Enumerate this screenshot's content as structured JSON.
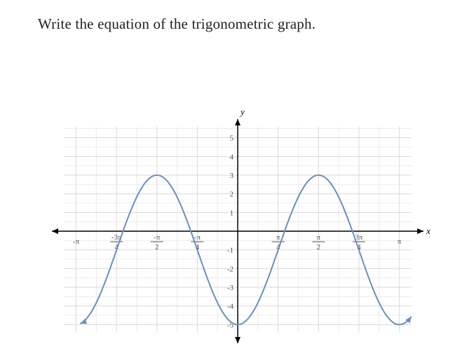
{
  "prompt": "Write the equation of the trigonometric graph.",
  "chart": {
    "type": "line",
    "x_axis_label": "x",
    "y_axis_label": "y",
    "xlim": [
      -3.5,
      3.5
    ],
    "ylim": [
      -6,
      6
    ],
    "grid_color": "#d9d9d9",
    "grid_color_minor": "#ececec",
    "background_color": "#ffffff",
    "curve_color": "#6a8fbf",
    "axis_color": "#000000",
    "tick_color": "#555555",
    "line_width": 2,
    "y_ticks": [
      -5,
      -4,
      -3,
      -2,
      -1,
      1,
      2,
      3,
      4,
      5
    ],
    "y_tick_labels": [
      "-5",
      "-4",
      "-3",
      "-2",
      "-1",
      "1",
      "2",
      "3",
      "4",
      "5"
    ],
    "x_ticks_pi_quarters": [
      -4,
      -3,
      -2,
      -1,
      1,
      2,
      3,
      4
    ],
    "x_tick_fractions": [
      {
        "pos": -4,
        "num": "-π",
        "den": ""
      },
      {
        "pos": -3,
        "num": "-3π",
        "den": "4"
      },
      {
        "pos": -2,
        "num": "-π",
        "den": "2"
      },
      {
        "pos": -1,
        "num": "-π",
        "den": "4"
      },
      {
        "pos": 1,
        "num": "π",
        "den": "4"
      },
      {
        "pos": 2,
        "num": "π",
        "den": "2"
      },
      {
        "pos": 3,
        "num": "3π",
        "den": "4"
      },
      {
        "pos": 4,
        "num": "π",
        "den": ""
      }
    ],
    "function": {
      "amplitude": 4,
      "angular_frequency": 2,
      "vertical_shift": -1,
      "type": "cos_negative",
      "formula_hint": "y = -4 cos(2x) - 1",
      "domain_start_pi_quarters": -3.9,
      "domain_end_pi_quarters": 4.3
    }
  }
}
